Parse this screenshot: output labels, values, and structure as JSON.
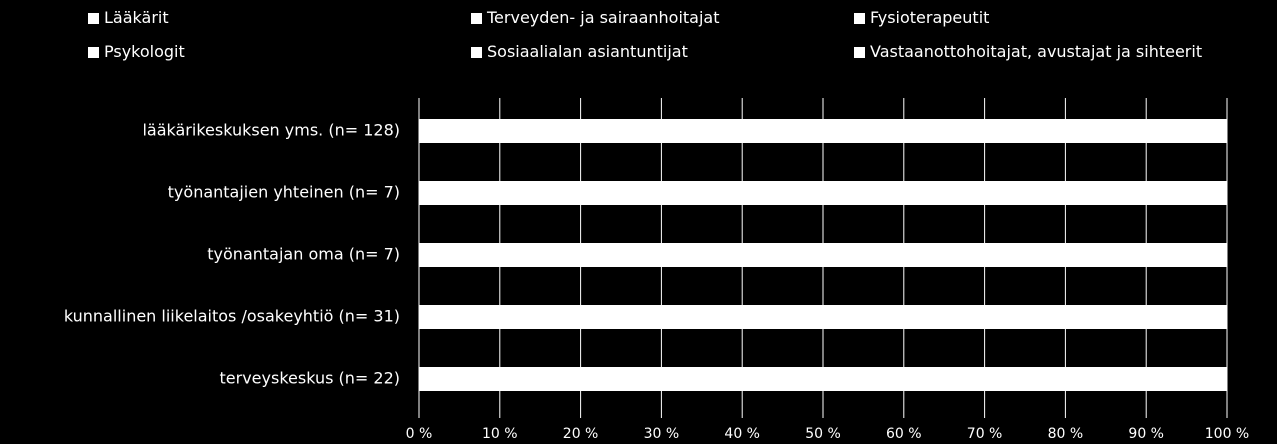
{
  "chart_data": {
    "type": "bar",
    "orientation": "horizontal",
    "stacked": true,
    "percent_stacked": true,
    "categories": [
      "lääkärikeskuksen yms. (n= 128)",
      "työnantajien yhteinen (n= 7)",
      "työnantajan oma (n= 7)",
      "kunnallinen liikelaitos /osakeyhtiö (n= 31)",
      "terveyskeskus  (n= 22)"
    ],
    "series": [
      {
        "name": "Lääkärit",
        "color": "#ffffff",
        "values": [
          100,
          100,
          100,
          100,
          100
        ]
      },
      {
        "name": "Terveyden- ja sairaanhoitajat",
        "color": "#ffffff",
        "values": [
          0,
          0,
          0,
          0,
          0
        ]
      },
      {
        "name": "Fysioterapeutit",
        "color": "#ffffff",
        "values": [
          0,
          0,
          0,
          0,
          0
        ]
      },
      {
        "name": "Psykologit",
        "color": "#ffffff",
        "values": [
          0,
          0,
          0,
          0,
          0
        ]
      },
      {
        "name": "Sosiaalialan asiantuntijat",
        "color": "#ffffff",
        "values": [
          0,
          0,
          0,
          0,
          0
        ]
      },
      {
        "name": "Vastaanottohoitajat, avustajat ja sihteerit",
        "color": "#ffffff",
        "values": [
          0,
          0,
          0,
          0,
          0
        ]
      }
    ],
    "xlim": [
      0,
      100
    ],
    "x_ticks": [
      0,
      10,
      20,
      30,
      40,
      50,
      60,
      70,
      80,
      90,
      100
    ],
    "x_tick_labels": [
      "0 %",
      "10 %",
      "20 %",
      "30 %",
      "40 %",
      "50 %",
      "60 %",
      "70 %",
      "80 %",
      "90 %",
      "100 %"
    ],
    "legend_position": "top",
    "gridlines": "vertical",
    "background": "#000000",
    "text_color": "#ffffff",
    "grid_color": "#ffffff"
  }
}
